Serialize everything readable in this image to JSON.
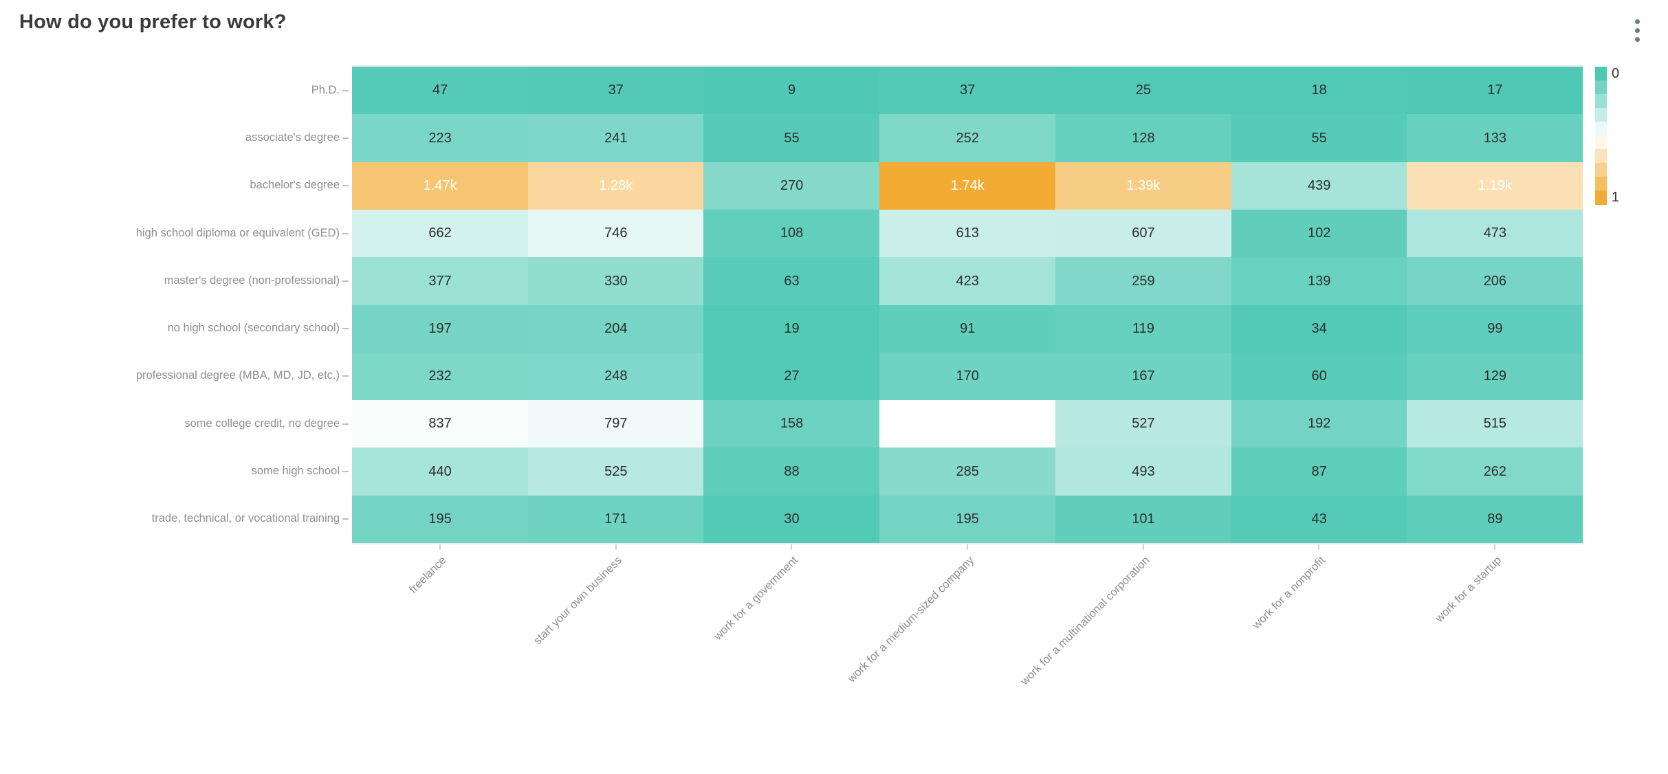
{
  "header": {
    "menu_icon": "kebab-menu"
  },
  "chart_data": {
    "type": "heatmap",
    "title": "How do you prefer to work?",
    "x_categories": [
      "freelance",
      "start your own business",
      "work for a government",
      "work for a medium-sized company",
      "work for a multinational corporation",
      "work for a nonprofit",
      "work for a startup"
    ],
    "y_categories": [
      "Ph.D.",
      "associate's degree",
      "bachelor's degree",
      "high school diploma or equivalent (GED)",
      "master's degree (non-professional)",
      "no high school (secondary school)",
      "professional degree (MBA, MD, JD, etc.)",
      "some college credit, no degree",
      "some high school",
      "trade, technical, or vocational training"
    ],
    "values": [
      [
        47,
        37,
        9,
        37,
        25,
        18,
        17
      ],
      [
        223,
        241,
        55,
        252,
        128,
        55,
        133
      ],
      [
        1470,
        1280,
        270,
        1740,
        1390,
        439,
        1190
      ],
      [
        662,
        746,
        108,
        613,
        607,
        102,
        473
      ],
      [
        377,
        330,
        63,
        423,
        259,
        139,
        206
      ],
      [
        197,
        204,
        19,
        91,
        119,
        34,
        99
      ],
      [
        232,
        248,
        27,
        170,
        167,
        60,
        129
      ],
      [
        837,
        797,
        158,
        null,
        527,
        192,
        515
      ],
      [
        440,
        525,
        88,
        285,
        493,
        87,
        262
      ],
      [
        195,
        171,
        30,
        195,
        101,
        43,
        89
      ]
    ],
    "labels": [
      [
        "47",
        "37",
        "9",
        "37",
        "25",
        "18",
        "17"
      ],
      [
        "223",
        "241",
        "55",
        "252",
        "128",
        "55",
        "133"
      ],
      [
        "1.47k",
        "1.28k",
        "270",
        "1.74k",
        "1.39k",
        "439",
        "1.19k"
      ],
      [
        "662",
        "746",
        "108",
        "613",
        "607",
        "102",
        "473"
      ],
      [
        "377",
        "330",
        "63",
        "423",
        "259",
        "139",
        "206"
      ],
      [
        "197",
        "204",
        "19",
        "91",
        "119",
        "34",
        "99"
      ],
      [
        "232",
        "248",
        "27",
        "170",
        "167",
        "60",
        "129"
      ],
      [
        "837",
        "797",
        "158",
        "",
        "527",
        "192",
        "515"
      ],
      [
        "440",
        "525",
        "88",
        "285",
        "493",
        "87",
        "262"
      ],
      [
        "195",
        "171",
        "30",
        "195",
        "101",
        "43",
        "89"
      ]
    ],
    "colorscale": {
      "low_color": "#4cc8b3",
      "mid_color": "#ffffff",
      "high_color": "#f2ab33",
      "min_label": "0",
      "max_label": "1",
      "steps": 10,
      "value_max_for_color": 1740
    },
    "legend_position": "right",
    "xlabel": "",
    "ylabel": "",
    "grid": false
  }
}
